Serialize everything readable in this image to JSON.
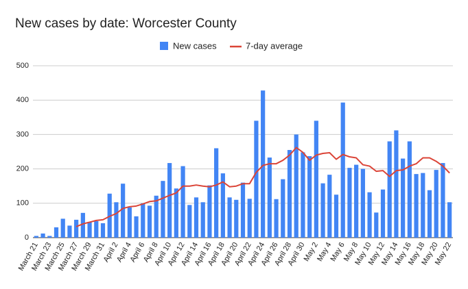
{
  "chart_data": {
    "type": "bar_line",
    "title": "New cases by date: Worcester County",
    "categories": [
      "March 21",
      null,
      "March 23",
      null,
      "March 25",
      null,
      "March 27",
      null,
      "March 29",
      null,
      "March 31",
      null,
      "April 2",
      null,
      "April 4",
      null,
      "April 6",
      null,
      "April 8",
      null,
      "April 10",
      null,
      "April 12",
      null,
      "April 14",
      null,
      "April 16",
      null,
      "April 18",
      null,
      "April 20",
      null,
      "April 22",
      null,
      "April 24",
      null,
      "April 26",
      null,
      "April 28",
      null,
      "April 30",
      null,
      "May 2",
      null,
      "May 4",
      null,
      "May 6",
      null,
      "May 8",
      null,
      "May 10",
      null,
      "May 12",
      null,
      "May 14",
      null,
      "May 16",
      null,
      "May 18",
      null,
      "May 20",
      null,
      "May 22"
    ],
    "series": [
      {
        "name": "New cases",
        "type": "bar",
        "color": "#4285f4",
        "values": [
          5,
          12,
          5,
          30,
          55,
          35,
          52,
          72,
          45,
          48,
          42,
          128,
          103,
          157,
          88,
          62,
          100,
          93,
          122,
          165,
          217,
          143,
          208,
          95,
          117,
          103,
          152,
          260,
          187,
          117,
          110,
          160,
          113,
          340,
          428,
          233,
          112,
          170,
          255,
          300,
          248,
          237,
          340,
          158,
          183,
          125,
          393,
          203,
          212,
          200,
          132,
          73,
          140,
          280,
          312,
          230,
          280,
          185,
          188,
          138,
          197,
          217,
          103
        ]
      },
      {
        "name": "7-day average",
        "type": "line",
        "color": "#db4437",
        "values": [
          null,
          null,
          null,
          null,
          null,
          null,
          32,
          40,
          45,
          50,
          52,
          62,
          70,
          85,
          90,
          92,
          98,
          105,
          107,
          115,
          123,
          130,
          150,
          150,
          153,
          150,
          148,
          153,
          162,
          148,
          150,
          157,
          157,
          190,
          210,
          215,
          215,
          225,
          240,
          262,
          248,
          225,
          240,
          245,
          247,
          228,
          242,
          235,
          232,
          212,
          208,
          193,
          195,
          178,
          195,
          197,
          208,
          215,
          232,
          232,
          222,
          208,
          188
        ]
      }
    ],
    "ylim": [
      0,
      500
    ],
    "yticks": [
      0,
      100,
      200,
      300,
      400,
      500
    ],
    "grid": true,
    "legend": "top"
  }
}
